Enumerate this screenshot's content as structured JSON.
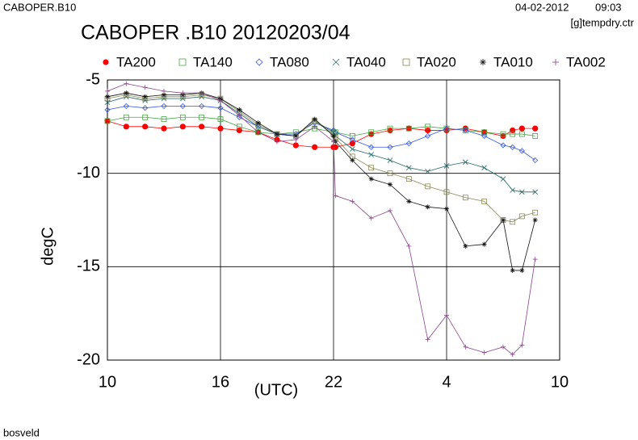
{
  "header": {
    "left": "CABOPER.B10",
    "date": "04-02-2012",
    "time": "09:03",
    "file": "[g]tempdry.ctr"
  },
  "footer": "bosveld",
  "chart_data": {
    "type": "line",
    "title": "CABOPER .B10 20120203/04",
    "xlabel": "(UTC)",
    "ylabel": "degC",
    "x": [
      10,
      11,
      12,
      13,
      14,
      15,
      16,
      17,
      18,
      19,
      20,
      21,
      22,
      22.1,
      23,
      24,
      25,
      26,
      27,
      28,
      29,
      30,
      31,
      31.5,
      32,
      32.7
    ],
    "xlim": [
      10,
      34
    ],
    "xticks": [
      10,
      16,
      22,
      {
        "value": 28,
        "label": "4"
      },
      {
        "value": 34,
        "label": "10"
      }
    ],
    "ylim": [
      -20,
      -5
    ],
    "yticks": [
      -20,
      -15,
      -10,
      -5
    ],
    "grid": true,
    "legend": "top",
    "series": [
      {
        "name": "TA200",
        "color": "#ff0000",
        "marker": "dot",
        "values": [
          -7.2,
          -7.5,
          -7.5,
          -7.6,
          -7.5,
          -7.5,
          -7.6,
          -7.7,
          -7.8,
          -8.2,
          -8.5,
          -8.6,
          -8.6,
          -8.6,
          -8.4,
          -7.9,
          -7.7,
          -7.6,
          -7.7,
          -7.7,
          -7.6,
          -7.8,
          -8.0,
          -7.7,
          -7.6,
          -7.6
        ]
      },
      {
        "name": "TA140",
        "color": "#44aa44",
        "marker": "square",
        "values": [
          -7.2,
          -7.0,
          -7.0,
          -7.1,
          -7.0,
          -7.0,
          -7.1,
          -7.5,
          -7.8,
          -7.9,
          -7.8,
          -7.6,
          -7.8,
          -7.8,
          -8.0,
          -7.8,
          -7.6,
          -7.6,
          -7.5,
          -7.6,
          -7.7,
          -7.8,
          -7.9,
          -7.9,
          -7.9,
          -8.0
        ]
      },
      {
        "name": "TA080",
        "color": "#3355dd",
        "marker": "diamond",
        "values": [
          -6.6,
          -6.4,
          -6.5,
          -6.4,
          -6.4,
          -6.4,
          -6.5,
          -7.0,
          -7.5,
          -7.9,
          -7.9,
          -7.3,
          -7.7,
          -7.8,
          -8.2,
          -8.6,
          -8.6,
          -8.4,
          -8.0,
          -7.6,
          -7.7,
          -8.0,
          -8.5,
          -8.6,
          -8.8,
          -9.3
        ]
      },
      {
        "name": "TA040",
        "color": "#226666",
        "marker": "cross",
        "values": [
          -6.2,
          -5.9,
          -6.1,
          -6.0,
          -6.0,
          -5.9,
          -6.1,
          -6.8,
          -7.5,
          -7.9,
          -8.0,
          -7.2,
          -7.8,
          -8.0,
          -8.7,
          -9.0,
          -9.3,
          -9.7,
          -9.9,
          -9.6,
          -9.4,
          -9.7,
          -10.3,
          -10.9,
          -11.0,
          -11.0
        ]
      },
      {
        "name": "TA020",
        "color": "#888855",
        "marker": "square",
        "values": [
          -6.0,
          -5.8,
          -6.0,
          -5.9,
          -5.9,
          -5.8,
          -6.0,
          -6.7,
          -7.4,
          -7.9,
          -8.0,
          -7.2,
          -7.9,
          -8.1,
          -9.1,
          -9.7,
          -10.0,
          -10.3,
          -10.7,
          -11.0,
          -11.3,
          -11.5,
          -12.5,
          -12.6,
          -12.3,
          -12.1
        ]
      },
      {
        "name": "TA010",
        "color": "#111111",
        "marker": "star",
        "values": [
          -5.9,
          -5.7,
          -5.9,
          -5.8,
          -5.8,
          -5.7,
          -6.0,
          -6.6,
          -7.3,
          -7.9,
          -8.0,
          -7.1,
          -8.0,
          -8.3,
          -9.3,
          -10.3,
          -10.6,
          -11.5,
          -11.8,
          -11.9,
          -13.9,
          -13.8,
          -12.5,
          -15.2,
          -15.2,
          -12.5
        ]
      },
      {
        "name": "TA002",
        "color": "#884488",
        "marker": "plus",
        "values": [
          -5.6,
          -5.2,
          -5.4,
          -5.6,
          -5.7,
          -5.7,
          -6.1,
          -6.9,
          -7.8,
          -8.3,
          -8.2,
          -7.5,
          -8.3,
          -11.2,
          -11.5,
          -12.4,
          -12.0,
          -13.9,
          -18.9,
          -17.6,
          -19.3,
          -19.6,
          -19.3,
          -19.7,
          -19.2,
          -14.6
        ]
      }
    ]
  }
}
